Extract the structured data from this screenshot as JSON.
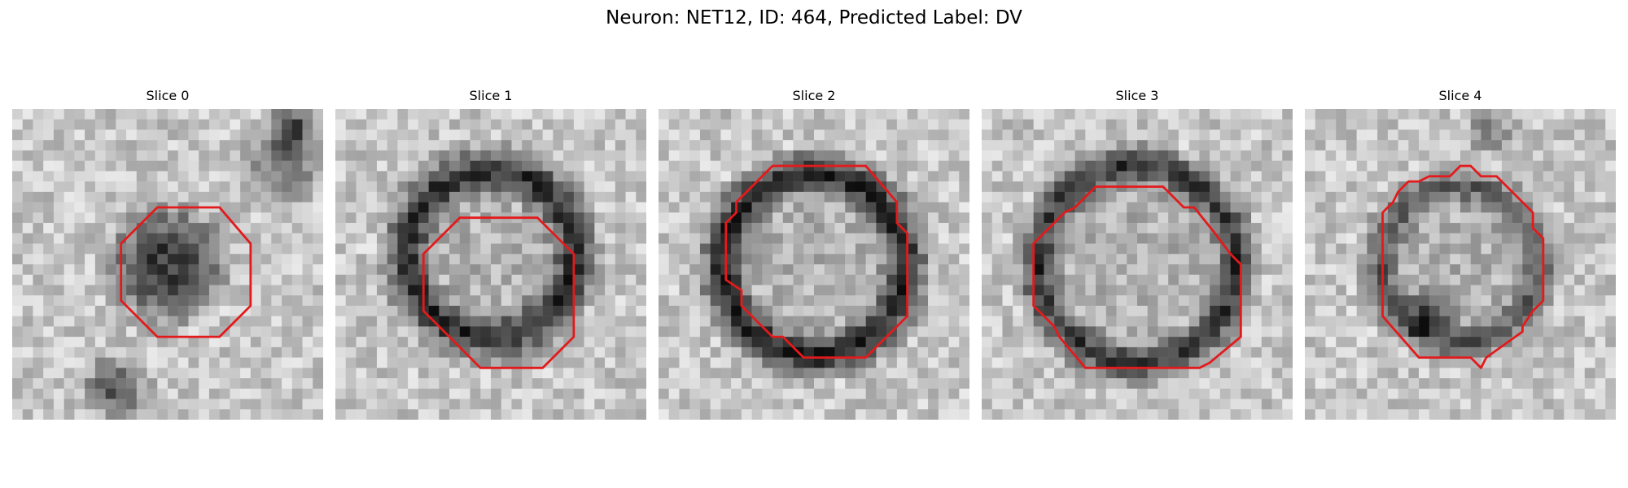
{
  "figure": {
    "title": "Neuron: NET12, ID: 464, Predicted Label: DV"
  },
  "panels": [
    {
      "title": "Slice 0"
    },
    {
      "title": "Slice 1"
    },
    {
      "title": "Slice 2"
    },
    {
      "title": "Slice 3"
    },
    {
      "title": "Slice 4"
    }
  ],
  "colors": {
    "contour": "#e31a1c",
    "background": "#ffffff"
  }
}
